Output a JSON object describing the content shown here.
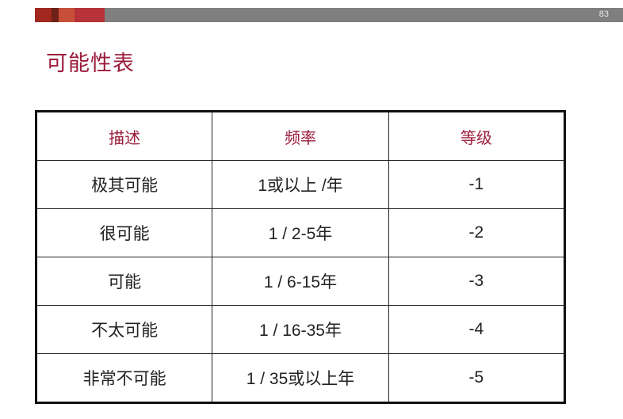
{
  "page_number": "83",
  "title": "可能性表",
  "colors": {
    "title": "#9b1b3a",
    "bar_grey": "#7f7f7f",
    "bar_segments": [
      "#a0281f",
      "#6e2219",
      "#c8503a",
      "#b8323a"
    ]
  },
  "table": {
    "headers": [
      "描述",
      "频率",
      "等级"
    ],
    "rows": [
      [
        "极其可能",
        "1或以上 /年",
        "-1"
      ],
      [
        "很可能",
        "1 / 2-5年",
        "-2"
      ],
      [
        "可能",
        "1 / 6-15年",
        "-3"
      ],
      [
        "不太可能",
        "1 / 16-35年",
        "-4"
      ],
      [
        "非常不可能",
        "1 / 35或以上年",
        "-5"
      ]
    ]
  }
}
